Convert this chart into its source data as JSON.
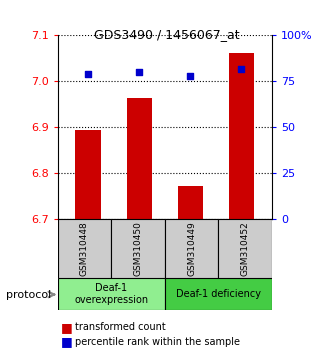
{
  "title": "GDS3490 / 1456067_at",
  "samples": [
    "GSM310448",
    "GSM310450",
    "GSM310449",
    "GSM310452"
  ],
  "bar_values": [
    6.895,
    6.963,
    6.772,
    7.062
  ],
  "percentile_values": [
    79,
    80,
    78,
    82
  ],
  "ylim_left": [
    6.7,
    7.1
  ],
  "ylim_right": [
    0,
    100
  ],
  "yticks_left": [
    6.7,
    6.8,
    6.9,
    7.0,
    7.1
  ],
  "yticks_right": [
    0,
    25,
    50,
    75,
    100
  ],
  "ytick_labels_right": [
    "0",
    "25",
    "50",
    "75",
    "100%"
  ],
  "bar_color": "#cc0000",
  "dot_color": "#0000cc",
  "bar_width": 0.5,
  "groups": [
    {
      "label": "Deaf-1\noverexpression",
      "color": "#90ee90"
    },
    {
      "label": "Deaf-1 deficiency",
      "color": "#44cc44"
    }
  ],
  "protocol_label": "protocol",
  "legend_bar_label": "transformed count",
  "legend_dot_label": "percentile rank within the sample",
  "sample_box_color": "#cccccc",
  "group1_color": "#90ee90",
  "group2_color": "#44cc44"
}
